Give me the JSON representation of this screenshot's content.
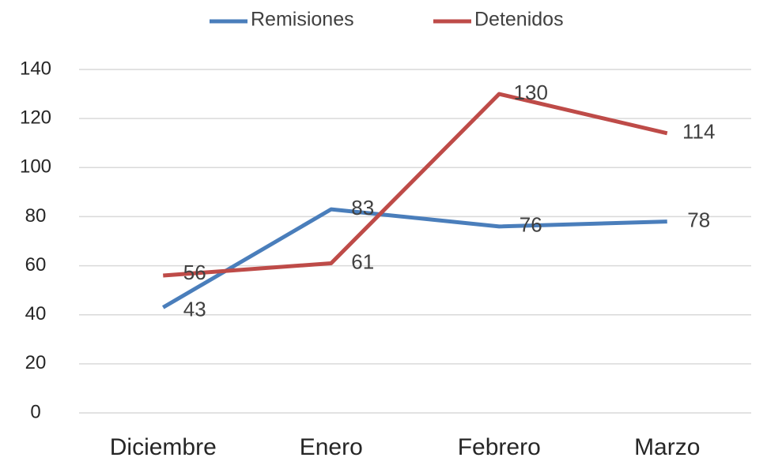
{
  "chart_data": {
    "type": "line",
    "categories": [
      "Diciembre",
      "Enero",
      "Febrero",
      "Marzo"
    ],
    "series": [
      {
        "name": "Remisiones",
        "color": "#4a7ebb",
        "values": [
          43,
          83,
          76,
          78
        ]
      },
      {
        "name": "Detenidos",
        "color": "#be4b48",
        "values": [
          56,
          61,
          130,
          114
        ]
      }
    ],
    "ylim": [
      0,
      140
    ],
    "yticks": [
      0,
      20,
      40,
      60,
      80,
      100,
      120,
      140
    ],
    "grid": true,
    "legend": "top"
  }
}
